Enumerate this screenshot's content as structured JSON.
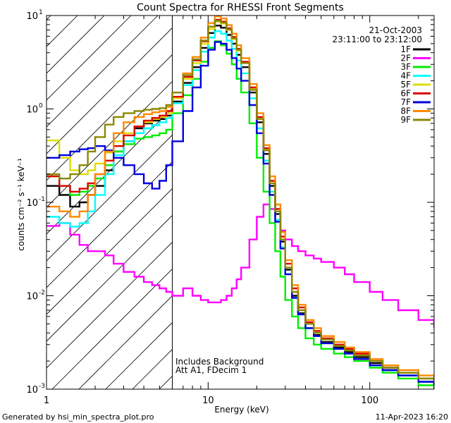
{
  "chart_data": {
    "type": "line",
    "title": "Count Spectra for RHESSI Front Segments",
    "xlabel": "Energy (keV)",
    "ylabel": "counts cm⁻² s⁻¹ keV⁻¹",
    "xscale": "log",
    "yscale": "log",
    "xlim": [
      1,
      250
    ],
    "ylim": [
      0.001,
      10
    ],
    "x_ticks": [
      {
        "value": 1,
        "label": "1"
      },
      {
        "value": 10,
        "label": "10"
      },
      {
        "value": 100,
        "label": "100"
      }
    ],
    "y_ticks": [
      {
        "value": 10,
        "label": "10"
      },
      {
        "value": 1,
        "label": "10"
      },
      {
        "value": 0.1,
        "label": "10"
      },
      {
        "value": 0.01,
        "label": "10"
      },
      {
        "value": 0.001,
        "label": "10"
      }
    ],
    "y_tick_exponents": [
      "1",
      "0",
      "-1",
      "-2",
      "-3"
    ],
    "attenuator_boundary_keV": 6,
    "shaded_region": [
      1,
      6
    ],
    "annotations": {
      "date": "21-Oct-2003",
      "time_range": "23:11:00 to 23:12:00",
      "background_note": "Includes Background",
      "attenuator_note": "Att A1, FDecim 1",
      "footer_left": "Generated by hsi_min_spectra_plot.pro",
      "footer_right": "11-Apr-2023 16:20"
    },
    "legend_position": "top-right",
    "series": [
      {
        "name": "1F",
        "color": "#000000",
        "x": [
          1,
          1.2,
          1.4,
          1.6,
          1.8,
          2,
          2.3,
          2.6,
          3,
          3.5,
          4,
          4.5,
          5,
          5.5,
          6,
          7,
          8,
          9,
          10,
          11,
          12,
          13,
          14,
          15,
          16,
          18,
          20,
          22,
          24,
          26,
          28,
          30,
          33,
          36,
          40,
          45,
          50,
          60,
          70,
          80,
          100,
          120,
          150,
          200,
          250
        ],
        "y": [
          0.15,
          0.12,
          0.09,
          0.1,
          0.12,
          0.15,
          0.22,
          0.35,
          0.45,
          0.62,
          0.7,
          0.75,
          0.78,
          0.85,
          1.2,
          1.9,
          2.8,
          4.5,
          6.5,
          7.8,
          7.4,
          6.2,
          5,
          3.8,
          2.8,
          1.5,
          0.72,
          0.33,
          0.15,
          0.075,
          0.038,
          0.019,
          0.01,
          0.0065,
          0.0045,
          0.0038,
          0.0032,
          0.0028,
          0.0025,
          0.0022,
          0.0019,
          0.0016,
          0.0014,
          0.0012,
          0.0011
        ]
      },
      {
        "name": "2F",
        "color": "#ff00ff",
        "x": [
          1,
          1.2,
          1.4,
          1.6,
          1.8,
          2,
          2.3,
          2.6,
          3,
          3.5,
          4,
          4.5,
          5,
          5.5,
          6,
          7,
          8,
          9,
          10,
          11,
          12,
          13,
          14,
          15,
          16,
          18,
          20,
          22,
          24,
          26,
          28,
          30,
          33,
          36,
          40,
          45,
          50,
          60,
          70,
          80,
          100,
          120,
          150,
          200,
          250
        ],
        "y": [
          0.056,
          0.06,
          0.045,
          0.035,
          0.03,
          0.03,
          0.027,
          0.022,
          0.018,
          0.016,
          0.014,
          0.013,
          0.012,
          0.011,
          0.01,
          0.012,
          0.01,
          0.009,
          0.0085,
          0.0085,
          0.009,
          0.01,
          0.012,
          0.015,
          0.02,
          0.04,
          0.07,
          0.095,
          0.085,
          0.065,
          0.05,
          0.04,
          0.034,
          0.03,
          0.027,
          0.025,
          0.023,
          0.02,
          0.017,
          0.014,
          0.011,
          0.009,
          0.007,
          0.0055,
          0.0045
        ]
      },
      {
        "name": "3F",
        "color": "#00ee00",
        "x": [
          1,
          1.2,
          1.4,
          1.6,
          1.8,
          2,
          2.3,
          2.6,
          3,
          3.5,
          4,
          4.5,
          5,
          5.5,
          6,
          7,
          8,
          9,
          10,
          11,
          12,
          13,
          14,
          15,
          16,
          18,
          20,
          22,
          24,
          26,
          28,
          30,
          33,
          36,
          40,
          45,
          50,
          60,
          70,
          80,
          100,
          120,
          150,
          200,
          250
        ],
        "y": [
          0.19,
          0.15,
          0.12,
          0.13,
          0.15,
          0.18,
          0.25,
          0.35,
          0.42,
          0.48,
          0.5,
          0.52,
          0.55,
          0.6,
          0.9,
          1.4,
          2.1,
          3.2,
          4.5,
          5.3,
          4.8,
          3.9,
          3,
          2.1,
          1.5,
          0.7,
          0.3,
          0.13,
          0.06,
          0.03,
          0.016,
          0.009,
          0.006,
          0.0045,
          0.0035,
          0.003,
          0.0027,
          0.0024,
          0.0022,
          0.002,
          0.0017,
          0.0015,
          0.0013,
          0.0011,
          0.001
        ]
      },
      {
        "name": "4F",
        "color": "#00ffff",
        "x": [
          1,
          1.2,
          1.4,
          1.6,
          1.8,
          2,
          2.3,
          2.6,
          3,
          3.5,
          4,
          4.5,
          5,
          5.5,
          6,
          7,
          8,
          9,
          10,
          11,
          12,
          13,
          14,
          15,
          16,
          18,
          20,
          22,
          24,
          26,
          28,
          30,
          33,
          36,
          40,
          45,
          50,
          60,
          70,
          80,
          100,
          120,
          150,
          200,
          250
        ],
        "y": [
          0.07,
          0.06,
          0.055,
          0.06,
          0.08,
          0.12,
          0.2,
          0.32,
          0.45,
          0.55,
          0.62,
          0.67,
          0.72,
          0.8,
          1.15,
          1.8,
          2.6,
          4.1,
          5.8,
          6.8,
          6.4,
          5.4,
          4.4,
          3.3,
          2.4,
          1.3,
          0.62,
          0.28,
          0.13,
          0.065,
          0.033,
          0.017,
          0.0095,
          0.0063,
          0.0045,
          0.0037,
          0.0031,
          0.0027,
          0.0024,
          0.0021,
          0.0018,
          0.0016,
          0.0014,
          0.0012,
          0.0011
        ]
      },
      {
        "name": "5F",
        "color": "#dddd00",
        "x": [
          1,
          1.2,
          1.4,
          1.6,
          1.8,
          2,
          2.3,
          2.6,
          3,
          3.5,
          4,
          4.5,
          5,
          5.5,
          6,
          7,
          8,
          9,
          10,
          11,
          12,
          13,
          14,
          15,
          16,
          18,
          20,
          22,
          24,
          26,
          28,
          30,
          33,
          36,
          40,
          45,
          50,
          60,
          70,
          80,
          100,
          120,
          150,
          200,
          250
        ],
        "y": [
          0.46,
          0.3,
          0.22,
          0.2,
          0.22,
          0.26,
          0.34,
          0.45,
          0.55,
          0.65,
          0.72,
          0.78,
          0.82,
          0.9,
          1.3,
          2.1,
          3.1,
          5,
          7.2,
          8.6,
          8.2,
          7,
          5.6,
          4.2,
          3.1,
          1.65,
          0.8,
          0.37,
          0.17,
          0.085,
          0.043,
          0.022,
          0.012,
          0.0075,
          0.0052,
          0.0042,
          0.0035,
          0.003,
          0.0027,
          0.0024,
          0.002,
          0.0017,
          0.0015,
          0.0013,
          0.0012
        ]
      },
      {
        "name": "6F",
        "color": "#dd0000",
        "x": [
          1,
          1.2,
          1.4,
          1.6,
          1.8,
          2,
          2.3,
          2.6,
          3,
          3.5,
          4,
          4.5,
          5,
          5.5,
          6,
          7,
          8,
          9,
          10,
          11,
          12,
          13,
          14,
          15,
          16,
          18,
          20,
          22,
          24,
          26,
          28,
          30,
          33,
          36,
          40,
          45,
          50,
          60,
          70,
          80,
          100,
          120,
          150,
          200,
          250
        ],
        "y": [
          0.19,
          0.15,
          0.13,
          0.14,
          0.16,
          0.2,
          0.28,
          0.4,
          0.52,
          0.65,
          0.75,
          0.8,
          0.85,
          0.95,
          1.35,
          2.2,
          3.3,
          5.3,
          7.6,
          9,
          8.6,
          7.3,
          5.9,
          4.4,
          3.2,
          1.7,
          0.82,
          0.38,
          0.17,
          0.085,
          0.043,
          0.022,
          0.012,
          0.0075,
          0.0052,
          0.0042,
          0.0035,
          0.003,
          0.0027,
          0.0024,
          0.002,
          0.0017,
          0.0015,
          0.0013,
          0.0012
        ]
      },
      {
        "name": "7F",
        "color": "#0000dd",
        "x": [
          1,
          1.2,
          1.4,
          1.6,
          1.8,
          2,
          2.3,
          2.6,
          3,
          3.5,
          4,
          4.5,
          5,
          5.5,
          6,
          7,
          8,
          9,
          10,
          11,
          12,
          13,
          14,
          15,
          16,
          18,
          20,
          22,
          24,
          26,
          28,
          30,
          33,
          36,
          40,
          45,
          50,
          60,
          70,
          80,
          100,
          120,
          150,
          200,
          250
        ],
        "y": [
          0.3,
          0.32,
          0.35,
          0.37,
          0.38,
          0.4,
          0.36,
          0.3,
          0.25,
          0.2,
          0.16,
          0.14,
          0.17,
          0.25,
          0.45,
          0.95,
          1.7,
          2.9,
          4.3,
          5.2,
          5,
          4.3,
          3.5,
          2.7,
          2,
          1.1,
          0.55,
          0.26,
          0.12,
          0.062,
          0.032,
          0.017,
          0.0095,
          0.0063,
          0.0045,
          0.0037,
          0.0031,
          0.0027,
          0.0024,
          0.0021,
          0.0018,
          0.0016,
          0.0014,
          0.0012,
          0.0011
        ]
      },
      {
        "name": "8F",
        "color": "#ff8800",
        "x": [
          1,
          1.2,
          1.4,
          1.6,
          1.8,
          2,
          2.3,
          2.6,
          3,
          3.5,
          4,
          4.5,
          5,
          5.5,
          6,
          7,
          8,
          9,
          10,
          11,
          12,
          13,
          14,
          15,
          16,
          18,
          20,
          22,
          24,
          26,
          28,
          30,
          33,
          36,
          40,
          45,
          50,
          60,
          70,
          80,
          100,
          120,
          150,
          200,
          250
        ],
        "y": [
          0.09,
          0.08,
          0.07,
          0.08,
          0.12,
          0.2,
          0.35,
          0.55,
          0.72,
          0.82,
          0.88,
          0.92,
          0.95,
          1.05,
          1.5,
          2.4,
          3.6,
          5.8,
          8.3,
          9.8,
          9.3,
          7.9,
          6.4,
          4.8,
          3.5,
          1.85,
          0.9,
          0.41,
          0.19,
          0.095,
          0.048,
          0.024,
          0.013,
          0.008,
          0.0055,
          0.0045,
          0.0037,
          0.0032,
          0.0028,
          0.0025,
          0.0021,
          0.0018,
          0.0016,
          0.0014,
          0.0012
        ]
      },
      {
        "name": "9F",
        "color": "#888800",
        "x": [
          1,
          1.2,
          1.4,
          1.6,
          1.8,
          2,
          2.3,
          2.6,
          3,
          3.5,
          4,
          4.5,
          5,
          5.5,
          6,
          7,
          8,
          9,
          10,
          11,
          12,
          13,
          14,
          15,
          16,
          18,
          20,
          22,
          24,
          26,
          28,
          30,
          33,
          36,
          40,
          45,
          50,
          60,
          70,
          80,
          100,
          120,
          150,
          200,
          250
        ],
        "y": [
          0.2,
          0.18,
          0.2,
          0.25,
          0.35,
          0.5,
          0.68,
          0.82,
          0.9,
          0.95,
          0.98,
          1,
          1.02,
          1.1,
          1.5,
          2.3,
          3.4,
          5.4,
          7.6,
          8.8,
          8.4,
          7.1,
          5.7,
          4.3,
          3.1,
          1.6,
          0.78,
          0.36,
          0.16,
          0.08,
          0.04,
          0.02,
          0.011,
          0.007,
          0.005,
          0.004,
          0.0034,
          0.0029,
          0.0026,
          0.0023,
          0.002,
          0.0017,
          0.0015,
          0.0013,
          0.0012
        ]
      }
    ]
  }
}
